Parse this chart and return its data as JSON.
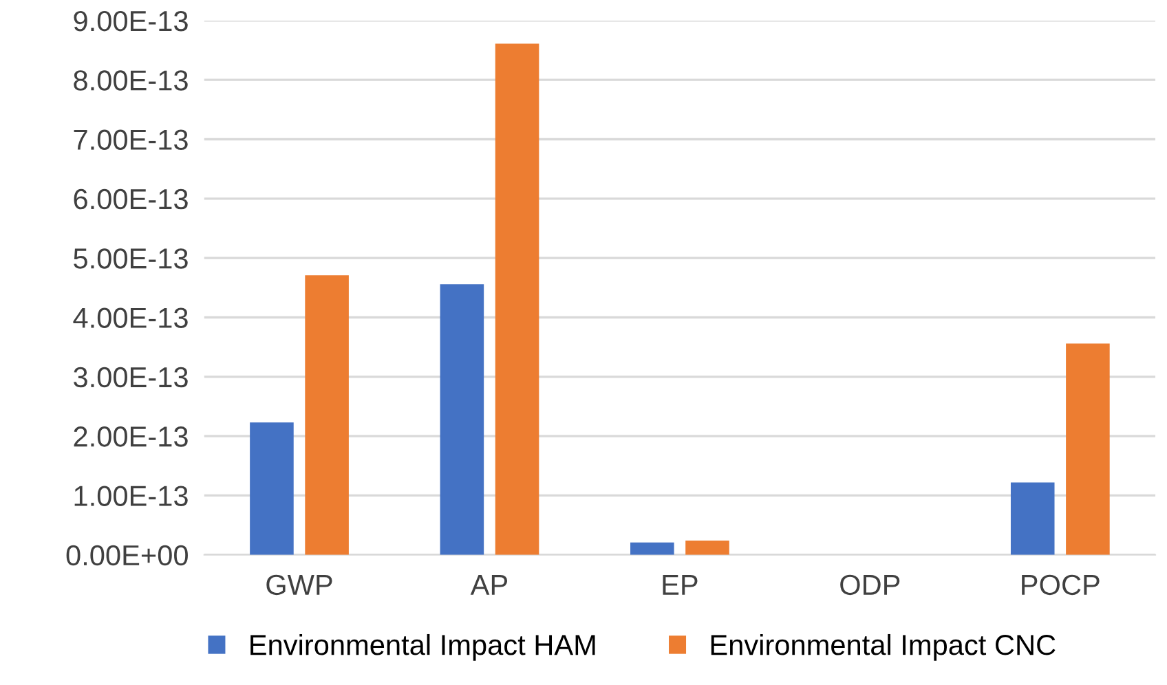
{
  "chart_data": {
    "type": "bar",
    "categories": [
      "GWP",
      "AP",
      "EP",
      "ODP",
      "POCP"
    ],
    "series": [
      {
        "name": "Environmental Impact HAM",
        "color": "#4472c4",
        "values": [
          2.23e-13,
          4.56e-13,
          2.1e-14,
          0,
          1.22e-13
        ]
      },
      {
        "name": "Environmental Impact CNC",
        "color": "#ed7d31",
        "values": [
          4.71e-13,
          8.61e-13,
          2.4e-14,
          0,
          3.56e-13
        ]
      }
    ],
    "ylim": [
      0,
      9e-13
    ],
    "yticks": [
      {
        "value": 0,
        "label": "0.00E+00"
      },
      {
        "value": 1e-13,
        "label": "1.00E-13"
      },
      {
        "value": 2e-13,
        "label": "2.00E-13"
      },
      {
        "value": 3e-13,
        "label": "3.00E-13"
      },
      {
        "value": 4e-13,
        "label": "4.00E-13"
      },
      {
        "value": 5e-13,
        "label": "5.00E-13"
      },
      {
        "value": 6e-13,
        "label": "6.00E-13"
      },
      {
        "value": 7e-13,
        "label": "7.00E-13"
      },
      {
        "value": 8e-13,
        "label": "8.00E-13"
      },
      {
        "value": 9e-13,
        "label": "9.00E-13"
      }
    ],
    "grid": "y",
    "legend": "bottom"
  }
}
